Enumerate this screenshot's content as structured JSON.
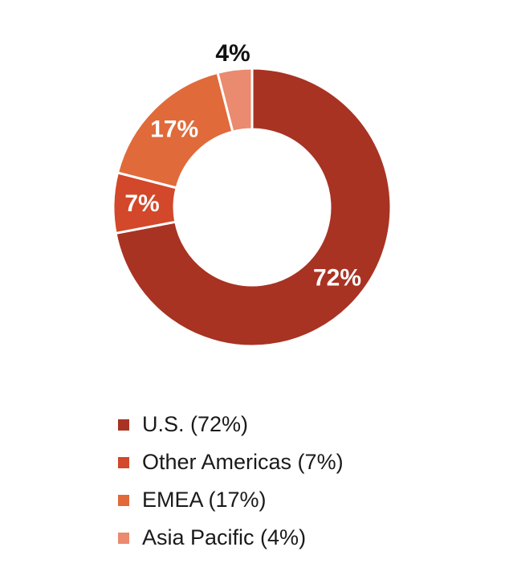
{
  "chart_data": {
    "type": "pie",
    "donut": true,
    "slices": [
      {
        "label": "72%",
        "value": 72,
        "color": "#A83323",
        "label_color": "#ffffff",
        "label_outside": false
      },
      {
        "label": "7%",
        "value": 7,
        "color": "#D3472A",
        "label_color": "#ffffff",
        "label_outside": false
      },
      {
        "label": "17%",
        "value": 17,
        "color": "#E06A3A",
        "label_color": "#ffffff",
        "label_outside": false
      },
      {
        "label": "4%",
        "value": 4,
        "color": "#EA8A6E",
        "label_color": "#111111",
        "label_outside": true
      }
    ],
    "legend": {
      "position": "bottom",
      "items": [
        {
          "label": "U.S. (72%)",
          "color": "#A83323"
        },
        {
          "label": "Other Americas (7%)",
          "color": "#D3472A"
        },
        {
          "label": "EMEA (17%)",
          "color": "#E06A3A"
        },
        {
          "label": "Asia Pacific (4%)",
          "color": "#EA8A6E"
        }
      ]
    }
  }
}
